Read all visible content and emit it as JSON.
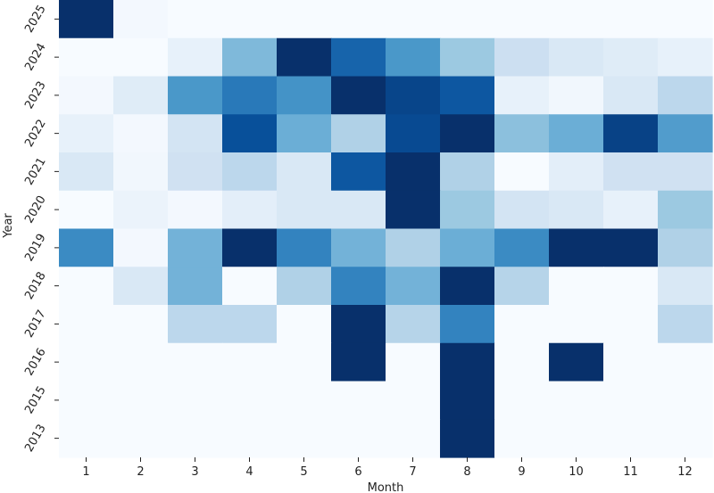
{
  "chart_data": {
    "type": "heatmap",
    "title": "",
    "xlabel": "Month",
    "ylabel": "Year",
    "colormap": "Blues",
    "colors": {
      "low": "#f7fbff",
      "high": "#08306b"
    },
    "colorbar": false,
    "grid": false,
    "x_categories": [
      "1",
      "2",
      "3",
      "4",
      "5",
      "6",
      "7",
      "8",
      "9",
      "10",
      "11",
      "12"
    ],
    "y_categories": [
      "2025",
      "2024",
      "2023",
      "2022",
      "2021",
      "2020",
      "2019",
      "2018",
      "2017",
      "2016",
      "2015",
      "2013"
    ],
    "value_scale": [
      0,
      1
    ],
    "values": [
      [
        1.0,
        0.02,
        0.0,
        0.0,
        0.0,
        0.0,
        0.0,
        0.0,
        0.0,
        0.0,
        0.0,
        0.0
      ],
      [
        0.0,
        0.0,
        0.08,
        0.45,
        1.0,
        0.8,
        0.6,
        0.38,
        0.22,
        0.15,
        0.12,
        0.08
      ],
      [
        0.02,
        0.12,
        0.6,
        0.72,
        0.62,
        1.0,
        0.92,
        0.85,
        0.08,
        0.03,
        0.15,
        0.28
      ],
      [
        0.08,
        0.02,
        0.18,
        0.88,
        0.5,
        0.32,
        0.9,
        1.0,
        0.42,
        0.5,
        0.93,
        0.58
      ],
      [
        0.15,
        0.03,
        0.2,
        0.28,
        0.15,
        0.85,
        1.0,
        0.32,
        0.0,
        0.1,
        0.2,
        0.2
      ],
      [
        0.0,
        0.06,
        0.02,
        0.1,
        0.15,
        0.15,
        1.0,
        0.38,
        0.18,
        0.15,
        0.08,
        0.38
      ],
      [
        0.65,
        0.02,
        0.48,
        1.0,
        0.68,
        0.48,
        0.32,
        0.5,
        0.65,
        1.0,
        1.0,
        0.32
      ],
      [
        0.0,
        0.15,
        0.48,
        0.0,
        0.32,
        0.68,
        0.48,
        1.0,
        0.3,
        0.0,
        0.0,
        0.15
      ],
      [
        0.0,
        0.0,
        0.28,
        0.28,
        0.0,
        1.0,
        0.3,
        0.68,
        0.0,
        0.0,
        0.0,
        0.28
      ],
      [
        0.0,
        0.0,
        0.0,
        0.0,
        0.0,
        1.0,
        0.0,
        1.0,
        0.0,
        1.0,
        0.0,
        0.0
      ],
      [
        0.0,
        0.0,
        0.0,
        0.0,
        0.0,
        0.0,
        0.0,
        1.0,
        0.0,
        0.0,
        0.0,
        0.0
      ],
      [
        0.0,
        0.0,
        0.0,
        0.0,
        0.0,
        0.0,
        0.0,
        1.0,
        0.0,
        0.0,
        0.0,
        0.0
      ]
    ]
  }
}
